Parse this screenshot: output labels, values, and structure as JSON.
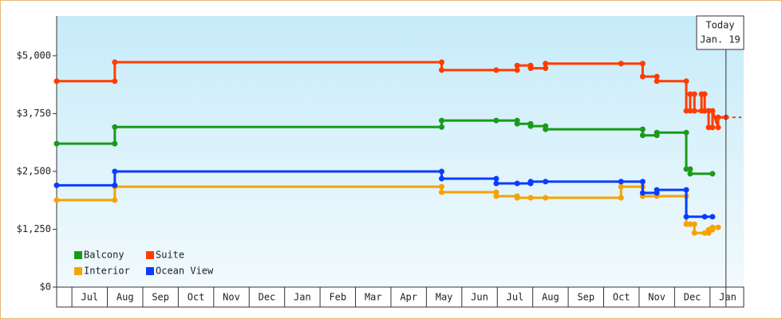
{
  "chart_data": {
    "type": "line",
    "step": true,
    "legend": "lower left",
    "xlim": [
      -0.43,
      18.95
    ],
    "xticks": [
      {
        "value": 0.5,
        "label": "Jul"
      },
      {
        "value": 1.5,
        "label": "Aug"
      },
      {
        "value": 2.5,
        "label": "Sep"
      },
      {
        "value": 3.5,
        "label": "Oct"
      },
      {
        "value": 4.5,
        "label": "Nov"
      },
      {
        "value": 5.5,
        "label": "Dec"
      },
      {
        "value": 6.5,
        "label": "Jan"
      },
      {
        "value": 7.5,
        "label": "Feb"
      },
      {
        "value": 8.5,
        "label": "Mar"
      },
      {
        "value": 9.5,
        "label": "Apr"
      },
      {
        "value": 10.5,
        "label": "May"
      },
      {
        "value": 11.5,
        "label": "Jun"
      },
      {
        "value": 12.5,
        "label": "Jul"
      },
      {
        "value": 13.5,
        "label": "Aug"
      },
      {
        "value": 14.5,
        "label": "Sep"
      },
      {
        "value": 15.5,
        "label": "Oct"
      },
      {
        "value": 16.5,
        "label": "Nov"
      },
      {
        "value": 17.5,
        "label": "Dec"
      },
      {
        "value": 18.5,
        "label": "Jan"
      }
    ],
    "ylim": [
      0,
      5860
    ],
    "yticks": [
      {
        "value": 0,
        "label": "$0"
      },
      {
        "value": 1250,
        "label": "$1,250"
      },
      {
        "value": 2500,
        "label": "$2,500"
      },
      {
        "value": 3750,
        "label": "$3,750"
      },
      {
        "value": 5000,
        "label": "$5,000"
      }
    ],
    "annotations": [
      {
        "x": 18.45,
        "text": [
          "Today",
          "Jan. 19"
        ]
      }
    ],
    "series": [
      {
        "name": "Balcony",
        "color": "#1a9a1a",
        "x": [
          -0.43,
          1.21,
          1.21,
          10.43,
          10.43,
          11.97,
          12.56,
          12.56,
          12.94,
          12.94,
          13.36,
          13.36,
          16.1,
          16.1,
          16.5,
          16.5,
          17.33,
          17.33,
          17.44,
          17.44,
          18.07
        ],
        "values": [
          3100,
          3100,
          3460,
          3460,
          3600,
          3600,
          3600,
          3530,
          3530,
          3480,
          3480,
          3410,
          3410,
          3280,
          3280,
          3340,
          3340,
          2550,
          2550,
          2450,
          2450
        ]
      },
      {
        "name": "Suite",
        "color": "#ff3c00",
        "dashed_extension": true,
        "x": [
          -0.43,
          1.21,
          1.21,
          10.43,
          10.43,
          11.97,
          12.56,
          12.56,
          12.94,
          12.94,
          13.36,
          13.36,
          15.49,
          16.1,
          16.1,
          16.5,
          16.5,
          17.33,
          17.33,
          17.44,
          17.44,
          17.56,
          17.56,
          17.76,
          17.76,
          17.85,
          17.85,
          17.96,
          17.96,
          18.07,
          18.07,
          18.23,
          18.23,
          18.45
        ],
        "values": [
          4450,
          4450,
          4860,
          4860,
          4690,
          4690,
          4690,
          4790,
          4790,
          4730,
          4730,
          4830,
          4830,
          4830,
          4550,
          4550,
          4450,
          4450,
          3810,
          3810,
          4170,
          4170,
          3810,
          3810,
          4170,
          4170,
          3810,
          3810,
          3450,
          3450,
          3810,
          3450,
          3670,
          3670
        ]
      },
      {
        "name": "Interior",
        "color": "#f5a300",
        "x": [
          -0.43,
          1.21,
          1.21,
          10.43,
          10.43,
          11.97,
          11.97,
          12.56,
          12.56,
          12.94,
          13.36,
          15.49,
          15.49,
          16.1,
          16.1,
          16.5,
          17.33,
          17.33,
          17.44,
          17.56,
          17.56,
          17.85,
          17.96,
          17.96,
          18.07,
          18.07,
          18.23
        ],
        "values": [
          1880,
          1880,
          2170,
          2170,
          2050,
          2050,
          1965,
          1965,
          1930,
          1930,
          1930,
          1930,
          2170,
          2170,
          1965,
          1965,
          1965,
          1360,
          1360,
          1360,
          1170,
          1170,
          1170,
          1240,
          1240,
          1290,
          1290
        ]
      },
      {
        "name": "Ocean View",
        "color": "#0a3cff",
        "x": [
          -0.43,
          1.21,
          1.21,
          10.43,
          10.43,
          11.97,
          11.97,
          12.56,
          12.94,
          12.94,
          13.36,
          15.49,
          16.1,
          16.1,
          16.5,
          16.5,
          17.33,
          17.33,
          17.85,
          18.07
        ],
        "values": [
          2200,
          2200,
          2500,
          2500,
          2345,
          2345,
          2240,
          2240,
          2240,
          2280,
          2280,
          2280,
          2280,
          2035,
          2035,
          2100,
          2100,
          1520,
          1520,
          1520
        ]
      }
    ]
  }
}
